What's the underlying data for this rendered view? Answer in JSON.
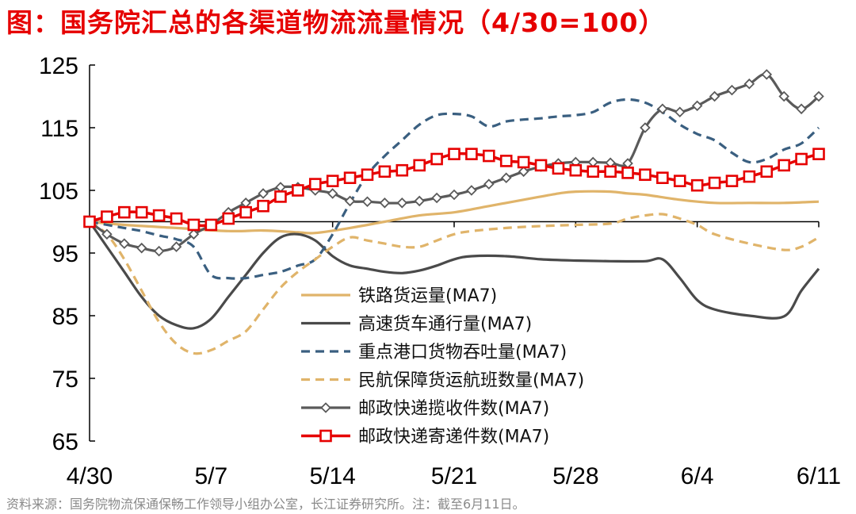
{
  "title": "图：国务院汇总的各渠道物流流量情况（4/30=100）",
  "source": "资料来源：国务院物流保通保畅工作领导小组办公室，长江证券研究所。注：截至6月11日。",
  "chart_data": {
    "type": "line",
    "title": "图：国务院汇总的各渠道物流流量情况（4/30=100）",
    "x_tick_labels": [
      "4/30",
      "5/7",
      "5/14",
      "5/21",
      "5/28",
      "6/4",
      "6/11"
    ],
    "x_tick_days": [
      0,
      7,
      14,
      21,
      28,
      35,
      42
    ],
    "y_ticks": [
      65,
      75,
      85,
      95,
      105,
      115,
      125
    ],
    "ylim": [
      65,
      125
    ],
    "xlim": [
      0,
      42
    ],
    "baseline": 100,
    "series": [
      {
        "name": "铁路货运量(MA7)",
        "color": "#e0b46a",
        "dash": "solid",
        "marker": "none",
        "points": [
          [
            0,
            100
          ],
          [
            2,
            99.5
          ],
          [
            5,
            99
          ],
          [
            8,
            98.5
          ],
          [
            10,
            98.6
          ],
          [
            12,
            98.3
          ],
          [
            13,
            98.2
          ],
          [
            15,
            99
          ],
          [
            17,
            100
          ],
          [
            19,
            101
          ],
          [
            21,
            101.5
          ],
          [
            23,
            102.5
          ],
          [
            25,
            103.5
          ],
          [
            27,
            104.5
          ],
          [
            28,
            104.8
          ],
          [
            30,
            104.8
          ],
          [
            31,
            104.5
          ],
          [
            32,
            104.3
          ],
          [
            34,
            103.5
          ],
          [
            36,
            103
          ],
          [
            38,
            103
          ],
          [
            40,
            103
          ],
          [
            42,
            103.2
          ]
        ]
      },
      {
        "name": "高速货车通行量(MA7)",
        "color": "#4a4a4a",
        "dash": "solid",
        "marker": "none",
        "points": [
          [
            0,
            100
          ],
          [
            1,
            96
          ],
          [
            2,
            92
          ],
          [
            3,
            88
          ],
          [
            4,
            85
          ],
          [
            5,
            83.5
          ],
          [
            6,
            83
          ],
          [
            7,
            84.5
          ],
          [
            8,
            88
          ],
          [
            9,
            91.5
          ],
          [
            10,
            95
          ],
          [
            11,
            97.5
          ],
          [
            12,
            98
          ],
          [
            13,
            97
          ],
          [
            14,
            94.5
          ],
          [
            15,
            93
          ],
          [
            16,
            92.5
          ],
          [
            17,
            92
          ],
          [
            18,
            91.8
          ],
          [
            19,
            92.2
          ],
          [
            20,
            93
          ],
          [
            21,
            94
          ],
          [
            22,
            94.5
          ],
          [
            24,
            94.5
          ],
          [
            26,
            94
          ],
          [
            28,
            93.8
          ],
          [
            30,
            93.7
          ],
          [
            32,
            93.7
          ],
          [
            33,
            94
          ],
          [
            34,
            91
          ],
          [
            35,
            87.5
          ],
          [
            36,
            86
          ],
          [
            38,
            85
          ],
          [
            40,
            84.9
          ],
          [
            41,
            89
          ],
          [
            42,
            92.5
          ]
        ]
      },
      {
        "name": "重点港口货物吞吐量(MA7)",
        "color": "#3a5f80",
        "dash": "dash",
        "marker": "none",
        "points": [
          [
            0,
            100
          ],
          [
            2,
            99
          ],
          [
            3,
            98.5
          ],
          [
            4,
            97.8
          ],
          [
            5,
            97.2
          ],
          [
            6,
            96
          ],
          [
            7,
            91.5
          ],
          [
            8,
            91
          ],
          [
            9,
            91
          ],
          [
            10,
            91.5
          ],
          [
            11,
            92
          ],
          [
            12,
            93
          ],
          [
            13,
            94
          ],
          [
            14,
            98
          ],
          [
            15,
            103
          ],
          [
            16,
            107.5
          ],
          [
            17,
            110.5
          ],
          [
            18,
            113
          ],
          [
            19,
            115.5
          ],
          [
            20,
            117
          ],
          [
            21,
            117.2
          ],
          [
            22,
            116.8
          ],
          [
            23,
            115.2
          ],
          [
            24,
            116
          ],
          [
            25,
            116.3
          ],
          [
            26,
            116.5
          ],
          [
            27,
            116.8
          ],
          [
            28,
            117
          ],
          [
            29,
            117.5
          ],
          [
            30,
            119
          ],
          [
            31,
            119.5
          ],
          [
            32,
            119
          ],
          [
            33,
            117.5
          ],
          [
            34,
            115.5
          ],
          [
            35,
            114
          ],
          [
            36,
            113
          ],
          [
            37,
            111
          ],
          [
            38,
            109.5
          ],
          [
            39,
            110
          ],
          [
            40,
            111.5
          ],
          [
            41,
            112.5
          ],
          [
            42,
            115
          ]
        ]
      },
      {
        "name": "民航保障货运航班数量(MA7)",
        "color": "#e0b46a",
        "dash": "dash",
        "marker": "none",
        "points": [
          [
            0,
            100
          ],
          [
            1,
            98
          ],
          [
            2,
            94
          ],
          [
            3,
            89
          ],
          [
            4,
            84
          ],
          [
            5,
            80.5
          ],
          [
            6,
            79
          ],
          [
            7,
            79.5
          ],
          [
            8,
            81
          ],
          [
            9,
            82.5
          ],
          [
            10,
            86
          ],
          [
            11,
            89.5
          ],
          [
            12,
            92
          ],
          [
            13,
            94
          ],
          [
            14,
            96
          ],
          [
            15,
            97.5
          ],
          [
            16,
            97
          ],
          [
            17,
            96.5
          ],
          [
            18,
            96
          ],
          [
            19,
            96
          ],
          [
            20,
            97
          ],
          [
            21,
            98
          ],
          [
            22,
            98.5
          ],
          [
            24,
            99
          ],
          [
            26,
            99.3
          ],
          [
            28,
            99.5
          ],
          [
            30,
            99.7
          ],
          [
            31,
            100.5
          ],
          [
            32,
            101
          ],
          [
            33,
            101.2
          ],
          [
            34,
            100.5
          ],
          [
            35,
            99.5
          ],
          [
            36,
            98
          ],
          [
            38,
            96.5
          ],
          [
            40,
            95.5
          ],
          [
            41,
            96
          ],
          [
            42,
            97.5
          ]
        ]
      },
      {
        "name": "邮政快递揽收件数(MA7)",
        "color": "#5a5a5a",
        "dash": "solid",
        "marker": "diamond",
        "points": [
          [
            0,
            100
          ],
          [
            1,
            98
          ],
          [
            2,
            96.5
          ],
          [
            3,
            95.8
          ],
          [
            4,
            95.3
          ],
          [
            5,
            96
          ],
          [
            6,
            98
          ],
          [
            7,
            99.5
          ],
          [
            8,
            101.5
          ],
          [
            9,
            103
          ],
          [
            10,
            104.5
          ],
          [
            11,
            105.5
          ],
          [
            12,
            105.5
          ],
          [
            13,
            105
          ],
          [
            14,
            104.5
          ],
          [
            15,
            103.3
          ],
          [
            16,
            103.2
          ],
          [
            17,
            103
          ],
          [
            18,
            103
          ],
          [
            19,
            103.3
          ],
          [
            20,
            103.8
          ],
          [
            21,
            104.3
          ],
          [
            22,
            105
          ],
          [
            23,
            106
          ],
          [
            24,
            107
          ],
          [
            25,
            108
          ],
          [
            26,
            108.8
          ],
          [
            27,
            109.3
          ],
          [
            28,
            109.5
          ],
          [
            29,
            109.5
          ],
          [
            30,
            109.4
          ],
          [
            31,
            109.3
          ],
          [
            32,
            115
          ],
          [
            33,
            118
          ],
          [
            34,
            117.5
          ],
          [
            35,
            118.5
          ],
          [
            36,
            120
          ],
          [
            37,
            121
          ],
          [
            38,
            122
          ],
          [
            39,
            123.5
          ],
          [
            40,
            120
          ],
          [
            41,
            118
          ],
          [
            42,
            120
          ]
        ]
      },
      {
        "name": "邮政快递寄递件数(MA7)",
        "color": "#e60000",
        "dash": "solid",
        "marker": "square",
        "points": [
          [
            0,
            100
          ],
          [
            1,
            100.8
          ],
          [
            2,
            101.5
          ],
          [
            3,
            101.5
          ],
          [
            4,
            101
          ],
          [
            5,
            100.5
          ],
          [
            6,
            99.5
          ],
          [
            7,
            99.5
          ],
          [
            8,
            100.5
          ],
          [
            9,
            101.5
          ],
          [
            10,
            102.5
          ],
          [
            11,
            104
          ],
          [
            12,
            105
          ],
          [
            13,
            106
          ],
          [
            14,
            106.5
          ],
          [
            15,
            107
          ],
          [
            16,
            107.5
          ],
          [
            17,
            108
          ],
          [
            18,
            108.2
          ],
          [
            19,
            109
          ],
          [
            20,
            110
          ],
          [
            21,
            110.8
          ],
          [
            22,
            110.8
          ],
          [
            23,
            110.5
          ],
          [
            24,
            109.7
          ],
          [
            25,
            109.5
          ],
          [
            26,
            109
          ],
          [
            27,
            108.5
          ],
          [
            28,
            108.2
          ],
          [
            29,
            108
          ],
          [
            30,
            108
          ],
          [
            31,
            107.8
          ],
          [
            32,
            107.5
          ],
          [
            33,
            107
          ],
          [
            34,
            106.5
          ],
          [
            35,
            105.8
          ],
          [
            36,
            106.2
          ],
          [
            37,
            106.5
          ],
          [
            38,
            107.2
          ],
          [
            39,
            108
          ],
          [
            40,
            109
          ],
          [
            41,
            110
          ],
          [
            42,
            110.8
          ]
        ]
      }
    ]
  }
}
